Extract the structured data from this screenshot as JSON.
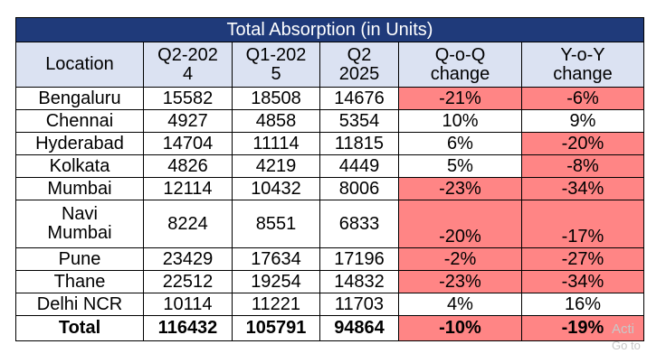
{
  "title": "Total Absorption (in Units)",
  "headers": [
    "Location",
    "Q2-2024",
    "Q1-2025",
    "Q2 2025",
    "Q-o-Q change",
    "Y-o-Y change"
  ],
  "header_lines": [
    [
      "Location"
    ],
    [
      "Q2-202",
      "4"
    ],
    [
      "Q1-202",
      "5"
    ],
    [
      "Q2",
      "2025"
    ],
    [
      "Q-o-Q",
      "change"
    ],
    [
      "Y-o-Y",
      "change"
    ]
  ],
  "rows": [
    {
      "location": "Bengaluru",
      "q2_2024": "15582",
      "q1_2025": "18508",
      "q2_2025": "14676",
      "qoq": "-21%",
      "yoy": "-6%"
    },
    {
      "location": "Chennai",
      "q2_2024": "4927",
      "q1_2025": "4858",
      "q2_2025": "5354",
      "qoq": "10%",
      "yoy": "9%"
    },
    {
      "location": "Hyderabad",
      "q2_2024": "14704",
      "q1_2025": "11114",
      "q2_2025": "11815",
      "qoq": "6%",
      "yoy": "-20%"
    },
    {
      "location": "Kolkata",
      "q2_2024": "4826",
      "q1_2025": "4219",
      "q2_2025": "4449",
      "qoq": "5%",
      "yoy": "-8%"
    },
    {
      "location": "Mumbai",
      "q2_2024": "12114",
      "q1_2025": "10432",
      "q2_2025": "8006",
      "qoq": "-23%",
      "yoy": "-34%"
    },
    {
      "location_lines": [
        "Navi",
        "Mumbai"
      ],
      "location": "Navi Mumbai",
      "q2_2024": "8224",
      "q1_2025": "8551",
      "q2_2025": "6833",
      "qoq": "-20%",
      "yoy": "-17%"
    },
    {
      "location": "Pune",
      "q2_2024": "23429",
      "q1_2025": "17634",
      "q2_2025": "17196",
      "qoq": "-2%",
      "yoy": "-27%"
    },
    {
      "location": "Thane",
      "q2_2024": "22512",
      "q1_2025": "19254",
      "q2_2025": "14832",
      "qoq": "-23%",
      "yoy": "-34%"
    },
    {
      "location": "Delhi NCR",
      "q2_2024": "10114",
      "q1_2025": "11221",
      "q2_2025": "11703",
      "qoq": "4%",
      "yoy": "16%"
    }
  ],
  "total": {
    "location": "Total",
    "q2_2024": "116432",
    "q1_2025": "105791",
    "q2_2025": "94864",
    "qoq": "-10%",
    "yoy": "-19%"
  },
  "colors": {
    "title_bg": "#1f3a7a",
    "header_bg": "#dbe2f2",
    "negative_fill": "#ff8585"
  },
  "watermark": {
    "line1": "Acti",
    "line2": "Go to"
  }
}
